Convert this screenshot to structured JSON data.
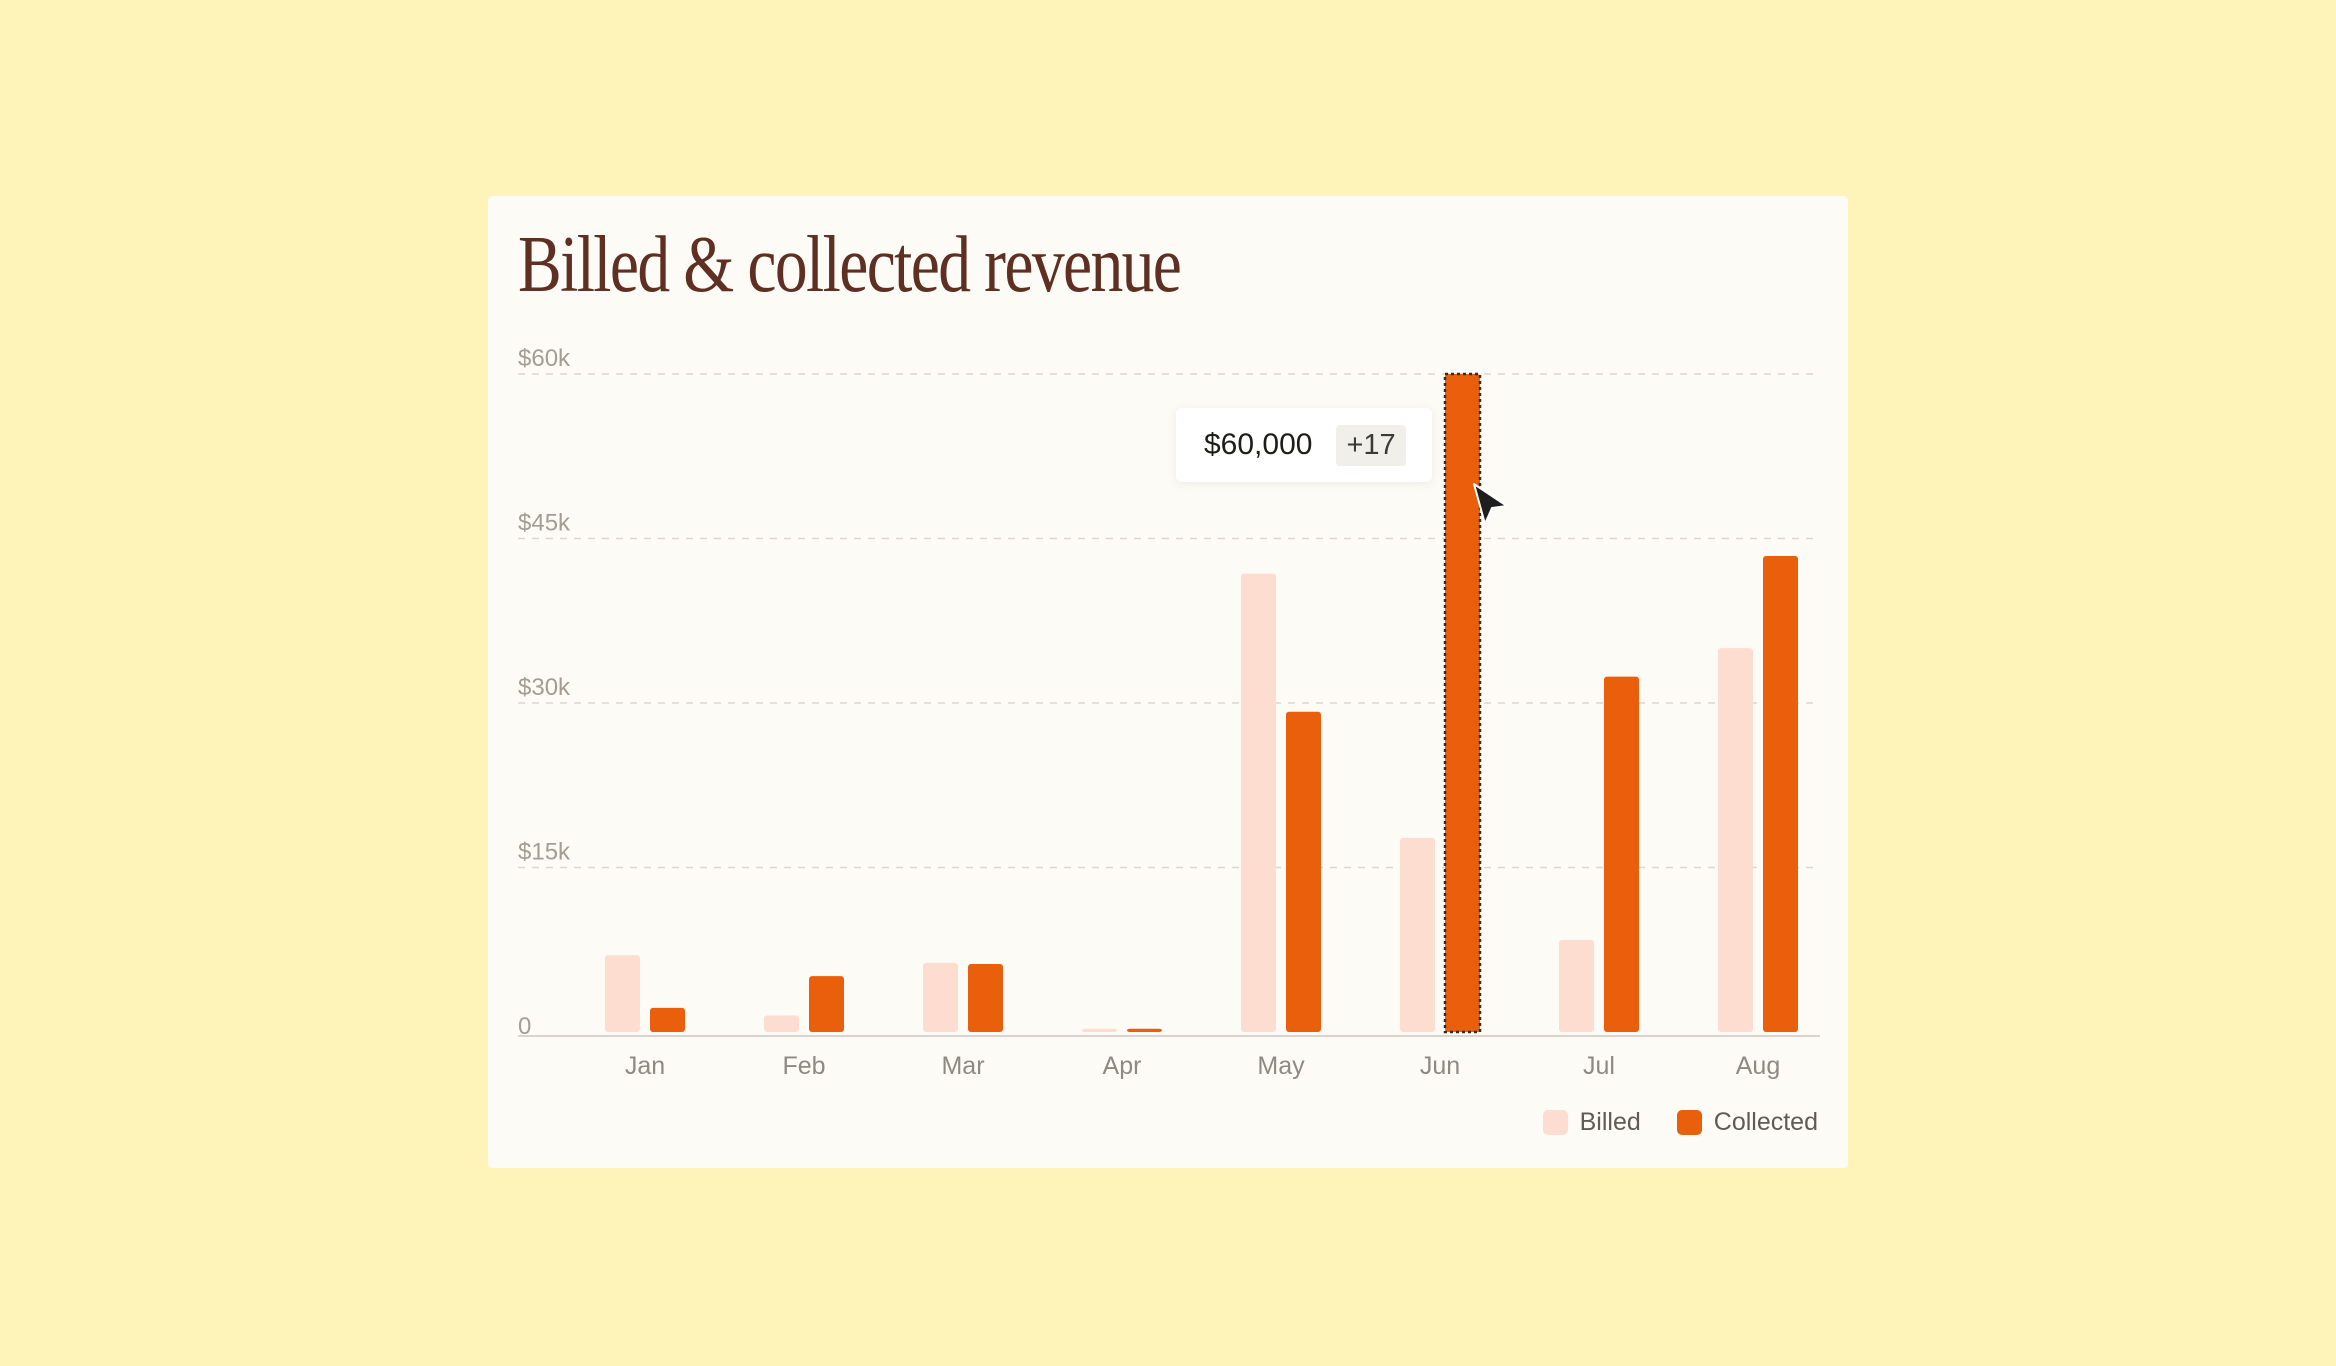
{
  "chart_data": {
    "type": "bar",
    "title": "Billed & collected revenue",
    "categories": [
      "Jan",
      "Feb",
      "Mar",
      "Apr",
      "May",
      "Jun",
      "Jul",
      "Aug"
    ],
    "series": [
      {
        "name": "Billed",
        "color": "#FCDDD0",
        "values": [
          7000,
          1500,
          6300,
          300,
          41800,
          17700,
          8400,
          35000
        ]
      },
      {
        "name": "Collected",
        "color": "#E95F0B",
        "values": [
          2200,
          5100,
          6200,
          300,
          29200,
          60000,
          32400,
          43400
        ]
      }
    ],
    "ylim": [
      0,
      60000
    ],
    "yticks": [
      0,
      15000,
      30000,
      45000,
      60000
    ],
    "ytick_labels": [
      "0",
      "$15k",
      "$30k",
      "$45k",
      "$60k"
    ],
    "xlabel": "",
    "ylabel": "",
    "grid": true,
    "legend_position": "bottom-right",
    "highlight": {
      "series": "Collected",
      "category": "Jun"
    }
  },
  "tooltip": {
    "value": "$60,000",
    "delta": "+17"
  },
  "legend": [
    {
      "label": "Billed",
      "color": "#FCDDD0"
    },
    {
      "label": "Collected",
      "color": "#E95F0B"
    }
  ],
  "cursor_icon": "arrow-pointer-icon"
}
